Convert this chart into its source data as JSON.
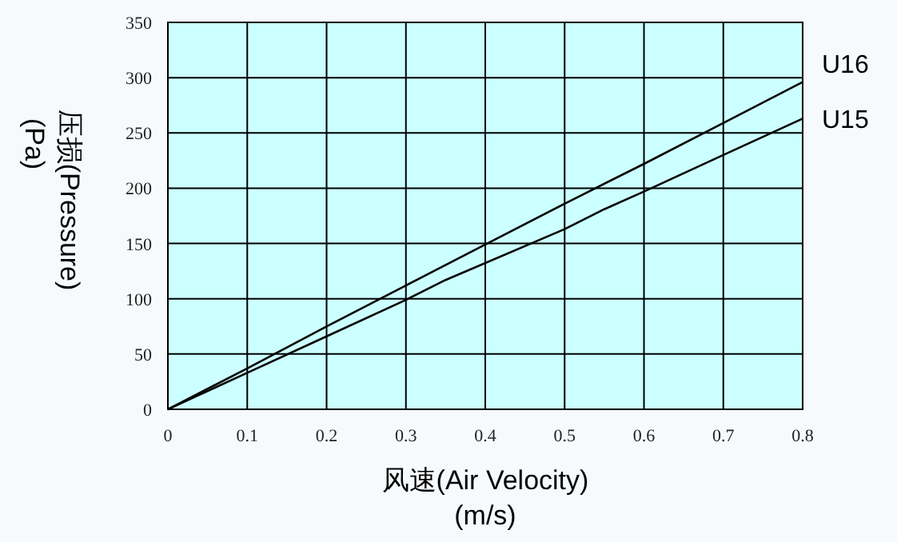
{
  "chart_data": {
    "type": "line",
    "xlabel": "风速(Air Velocity) (m/s)",
    "ylabel": "压损(Pressure) (Pa)",
    "x": [
      0,
      0.1,
      0.2,
      0.3,
      0.4,
      0.5,
      0.6,
      0.7,
      0.8
    ],
    "series": [
      {
        "name": "U16",
        "color": "#000000",
        "values": [
          0,
          37,
          75,
          112,
          149,
          186,
          222,
          259,
          296
        ]
      },
      {
        "name": "U15",
        "color": "#000000",
        "x": [
          0,
          0.1,
          0.2,
          0.3,
          0.35,
          0.5,
          0.55,
          0.6,
          0.7,
          0.8
        ],
        "values": [
          0,
          33,
          66,
          99,
          117,
          163,
          181,
          197,
          230,
          263
        ]
      }
    ],
    "xlim": [
      0,
      0.8
    ],
    "ylim": [
      0,
      350
    ],
    "xticks": [
      0,
      {
        "value": 0.1,
        "label": "0.1"
      },
      {
        "value": 0.2,
        "label": "0.2"
      },
      {
        "value": 0.3,
        "label": "0.3"
      },
      {
        "value": 0.4,
        "label": "0.4"
      },
      {
        "value": 0.5,
        "label": "0.5"
      },
      {
        "value": 0.6,
        "label": "0.6"
      },
      {
        "value": 0.7,
        "label": "0.7"
      },
      {
        "value": 0.8,
        "label": "0.8"
      }
    ],
    "yticks": [
      0,
      50,
      100,
      150,
      200,
      250,
      300,
      350
    ],
    "grid": true,
    "marker": "none",
    "line_style": "solid"
  }
}
